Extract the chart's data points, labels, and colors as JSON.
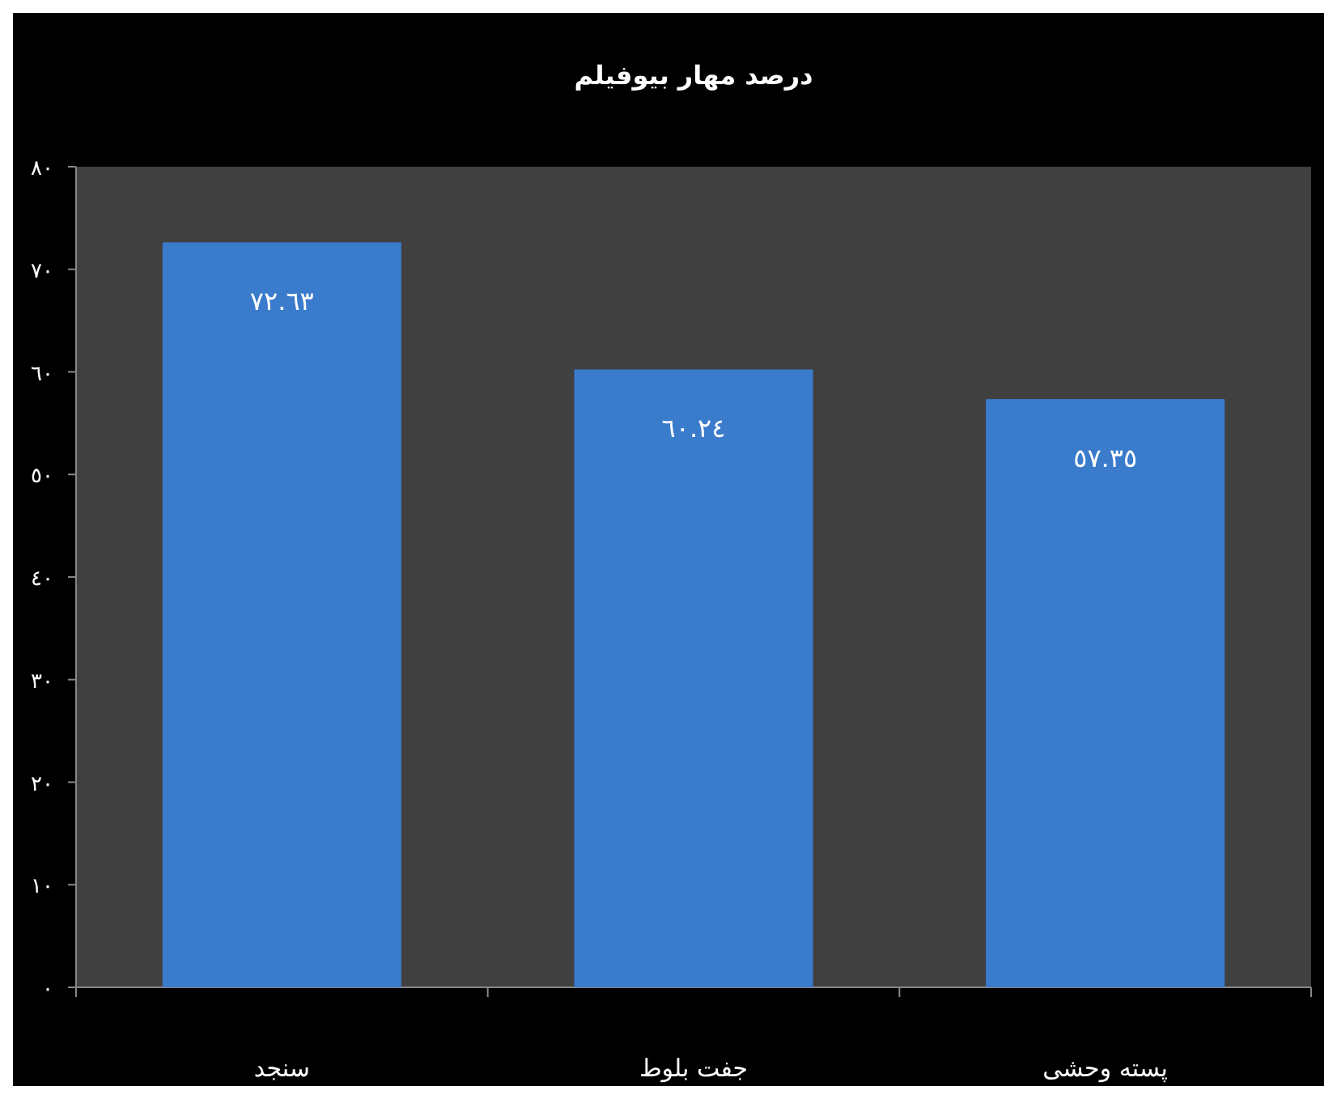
{
  "chart_data": {
    "type": "bar",
    "title": "درصد مهار بیوفیلم",
    "categories": [
      "سنجد",
      "جفت بلوط",
      "پسته وحشی"
    ],
    "values": [
      72.63,
      60.24,
      57.35
    ],
    "color": "#3a7bcc",
    "value_labels": [
      "٧٢.٦٣",
      "٦٠.٢٤",
      "٥٧.٣٥"
    ],
    "ylim": [
      0,
      80
    ],
    "yticks": [
      {
        "value": 0,
        "label": "٠"
      },
      {
        "value": 10,
        "label": "١٠"
      },
      {
        "value": 20,
        "label": "٢٠"
      },
      {
        "value": 30,
        "label": "٣٠"
      },
      {
        "value": 40,
        "label": "٤٠"
      },
      {
        "value": 50,
        "label": "٥٠"
      },
      {
        "value": 60,
        "label": "٦٠"
      },
      {
        "value": 70,
        "label": "٧٠"
      },
      {
        "value": 80,
        "label": "٨٠"
      }
    ],
    "grid": false
  }
}
